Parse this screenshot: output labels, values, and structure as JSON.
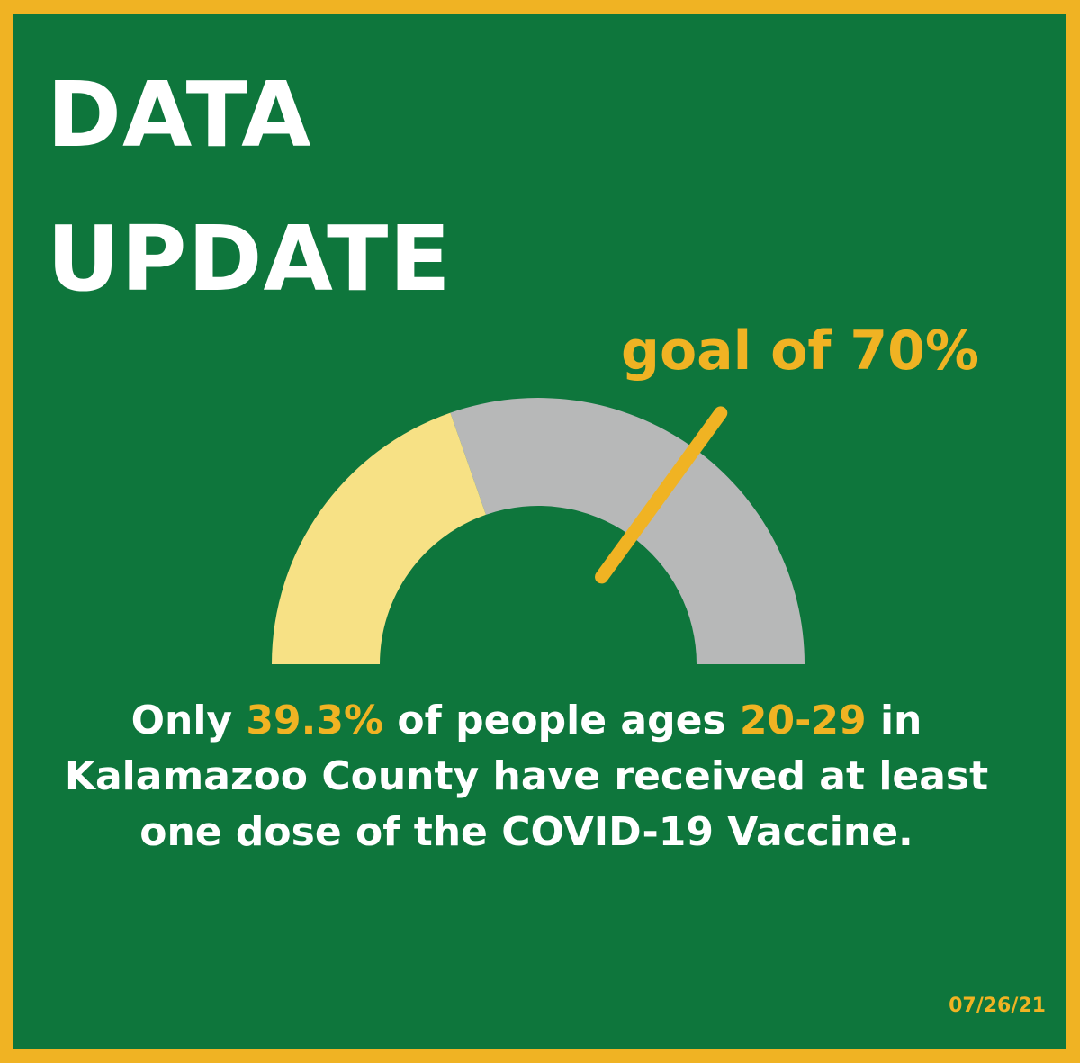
{
  "colors": {
    "background_green": "#0E763C",
    "border_gold": "#F0B323",
    "gauge_filled": "#F7E185",
    "gauge_remaining": "#B7B8B8",
    "text_white": "#FFFFFF",
    "accent_gold": "#F0B323"
  },
  "headline": {
    "line1": "DATA",
    "line2": "UPDATE"
  },
  "gauge": {
    "value_fraction": 0.393,
    "goal_fraction": 0.7,
    "goal_label": "goal of 70%"
  },
  "caption": {
    "part1": "Only ",
    "percent": "39.3%",
    "part2": " of people ages ",
    "ages": "20-29",
    "part3": " in Kalamazoo County have received at least one dose of the COVID-19 Vaccine."
  },
  "date": "07/26/21"
}
